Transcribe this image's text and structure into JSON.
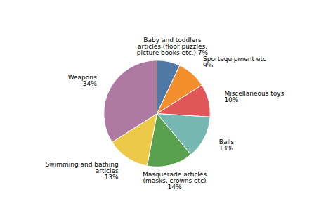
{
  "chart_data": {
    "type": "pie",
    "categories": [
      "Baby and toddlers\narticles (floor puzzles,\npicture books etc.) 7%",
      "Sportequipment etc\n9%",
      "Miscellaneous toys\n10%",
      "Balls\n13%",
      "Masquerade articles\n(masks, crowns etc)\n14%",
      "Swimming and bathing\narticles\n13%",
      "Weapons\n34%"
    ],
    "values": [
      7,
      9,
      10,
      13,
      14,
      13,
      34
    ]
  }
}
